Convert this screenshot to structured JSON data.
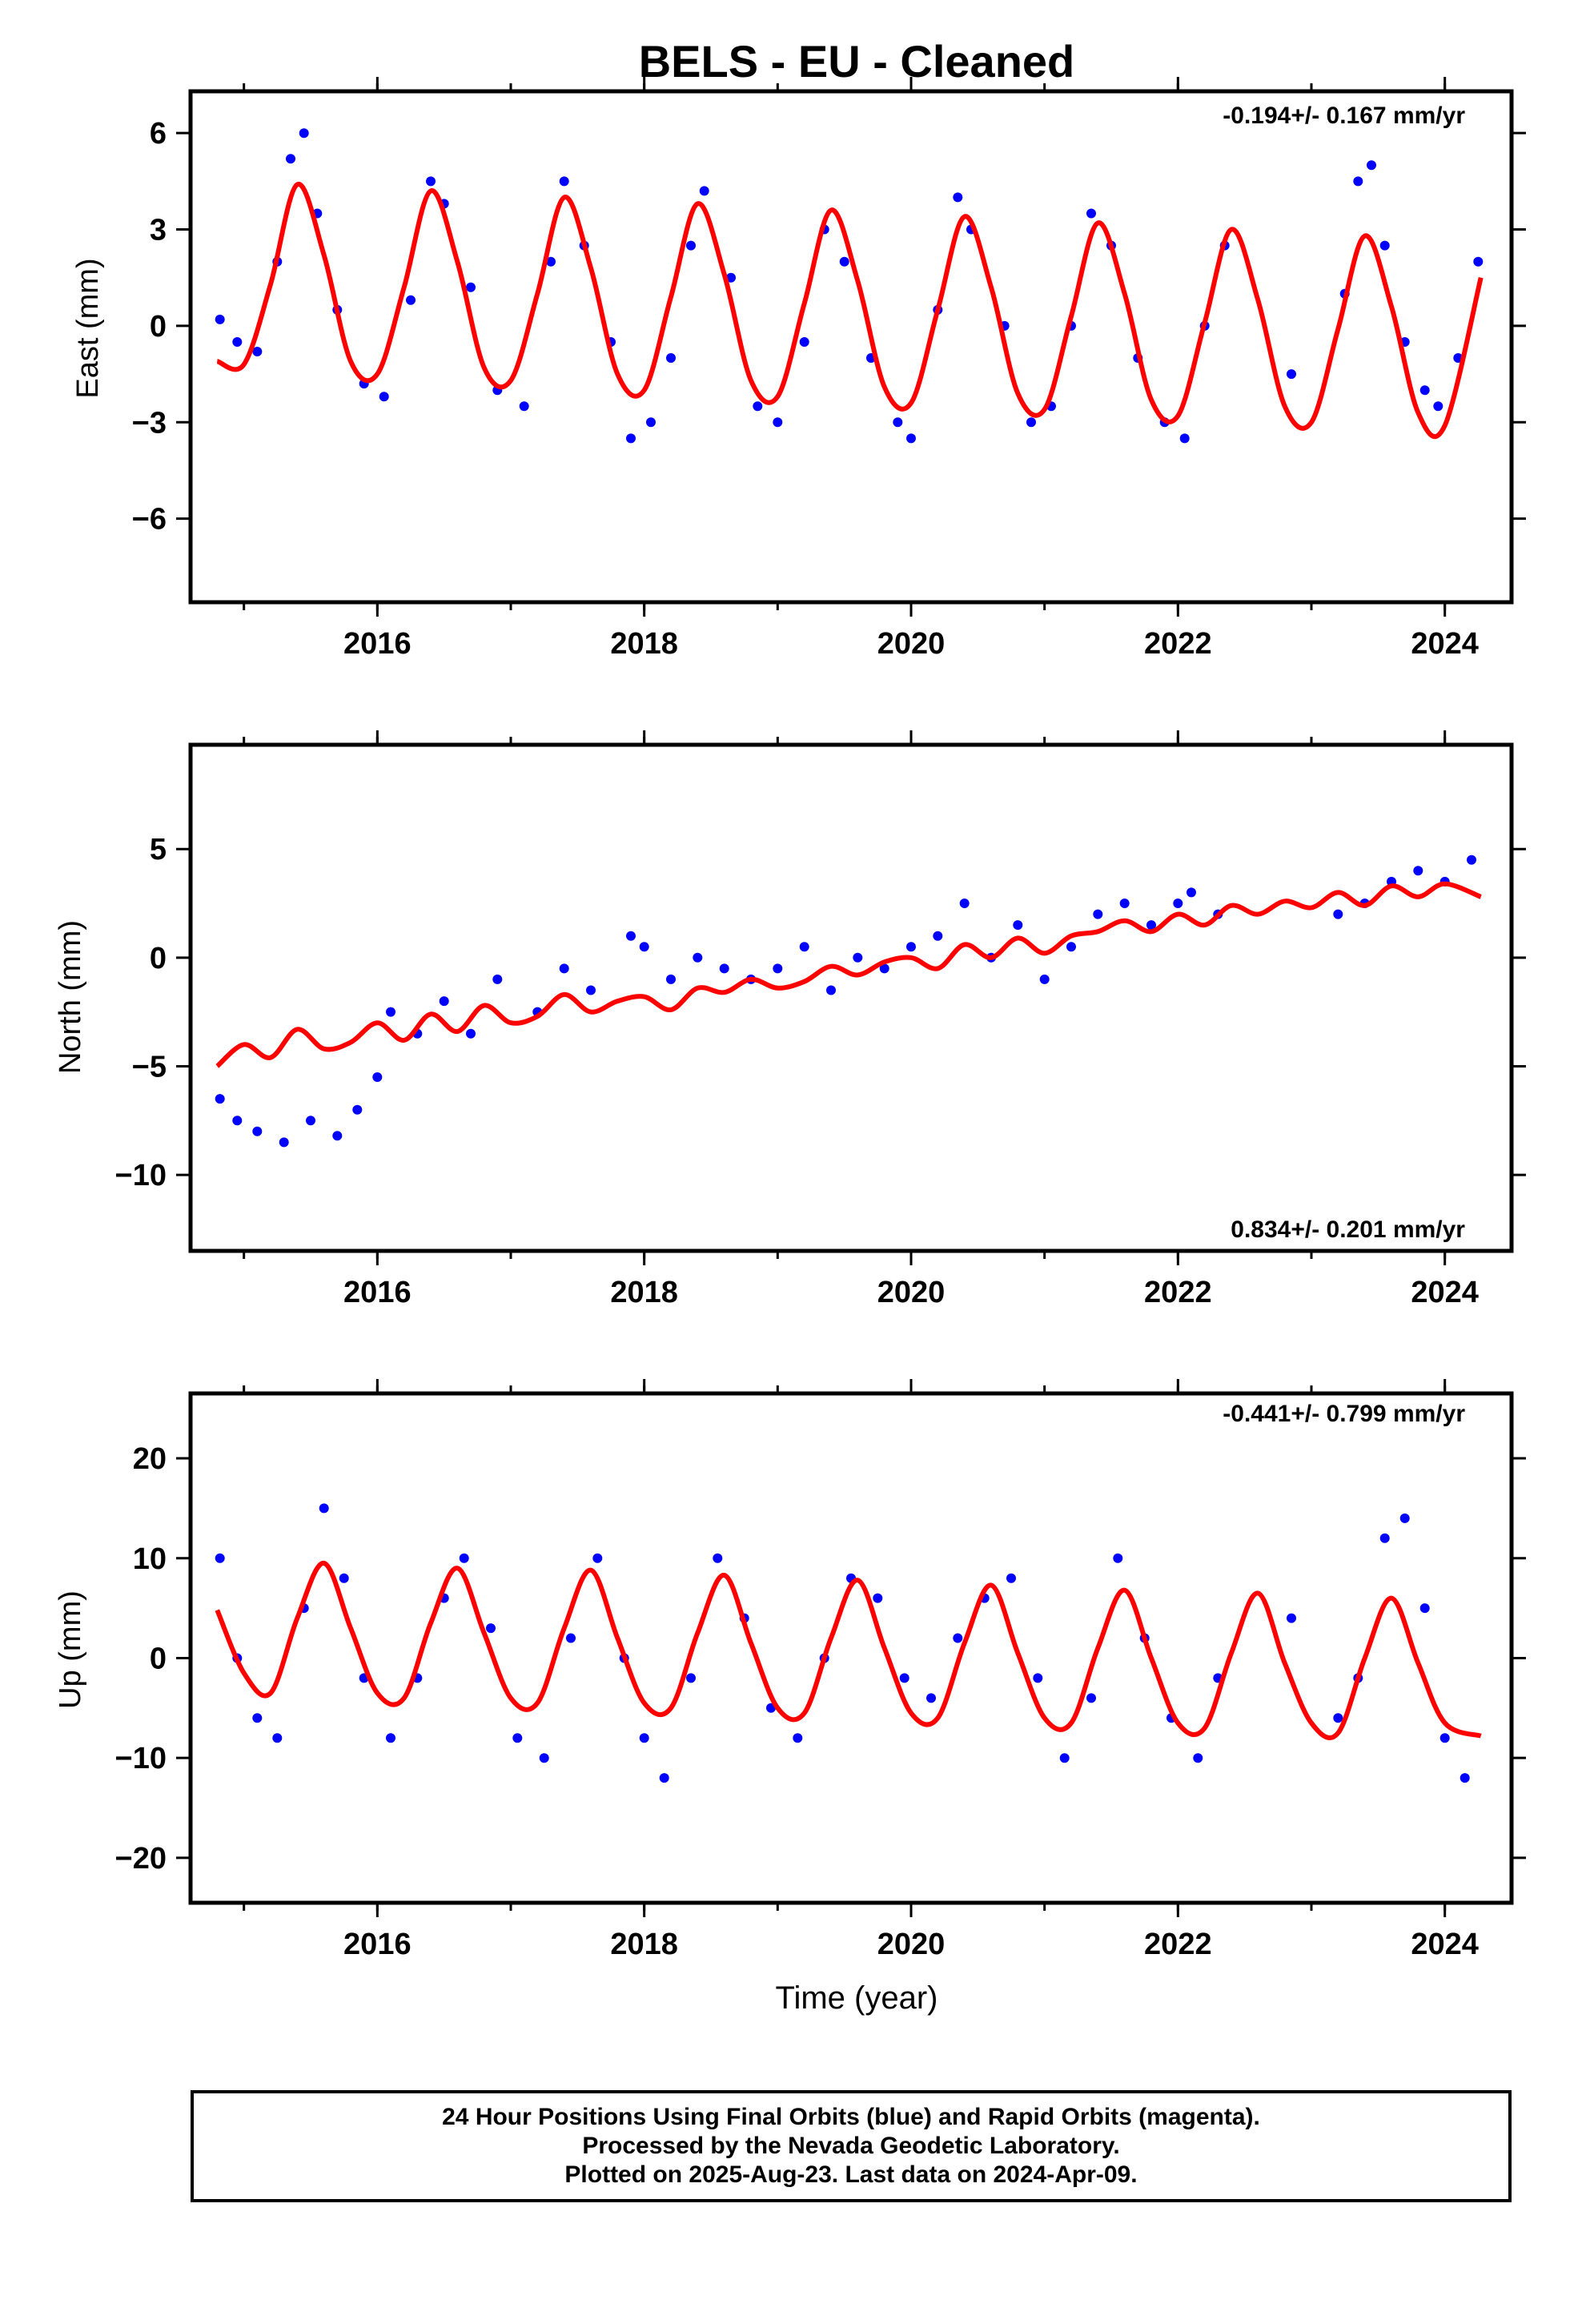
{
  "title": "BELS  - EU - Cleaned",
  "xaxis_label": "Time (year)",
  "footer": {
    "line1": "24 Hour Positions Using Final Orbits (blue) and Rapid Orbits (magenta).",
    "line2": "Processed by the Nevada Geodetic Laboratory.",
    "line3": "Plotted on 2025-Aug-23. Last data on 2024-Apr-09."
  },
  "colors": {
    "points": "#0000ff",
    "model": "#ff0000",
    "frame": "#000000"
  },
  "chart_data": [
    {
      "type": "scatter",
      "title": "BELS  - EU - Cleaned",
      "ylabel": "East (mm)",
      "xlabel": "",
      "rate_text": "-0.194+/- 0.167 mm/yr",
      "rate_position": "top-right",
      "xlim": [
        2014.6,
        2024.5
      ],
      "ylim": [
        -8.6,
        7.3
      ],
      "xticks": [
        2016,
        2018,
        2020,
        2022,
        2024
      ],
      "yticks": [
        -6,
        -3,
        0,
        3,
        6
      ],
      "ytick_labels": [
        "−6",
        "−3",
        "0",
        "3",
        "6"
      ],
      "series": [
        {
          "name": "model",
          "kind": "line",
          "x": [
            2014.8,
            2015.0,
            2015.2,
            2015.4,
            2015.6,
            2015.8,
            2016.0,
            2016.2,
            2016.4,
            2016.6,
            2016.8,
            2017.0,
            2017.2,
            2017.4,
            2017.6,
            2017.8,
            2018.0,
            2018.2,
            2018.4,
            2018.6,
            2018.8,
            2019.0,
            2019.2,
            2019.4,
            2019.6,
            2019.8,
            2020.0,
            2020.2,
            2020.4,
            2020.6,
            2020.8,
            2021.0,
            2021.2,
            2021.4,
            2021.6,
            2021.8,
            2022.0,
            2022.2,
            2022.4,
            2022.6,
            2022.8,
            2023.0,
            2023.2,
            2023.4,
            2023.6,
            2023.8,
            2024.0,
            2024.27
          ],
          "y": [
            -1.1,
            -1.2,
            1.3,
            4.4,
            2.2,
            -1.1,
            -1.5,
            1.2,
            4.2,
            2.0,
            -1.3,
            -1.7,
            1.0,
            4.0,
            1.8,
            -1.5,
            -2.0,
            0.9,
            3.8,
            1.6,
            -1.7,
            -2.2,
            0.7,
            3.6,
            1.4,
            -1.9,
            -2.4,
            0.5,
            3.4,
            1.2,
            -2.1,
            -2.6,
            0.3,
            3.2,
            1.0,
            -2.3,
            -2.8,
            0.1,
            3.0,
            0.8,
            -2.5,
            -3.0,
            -0.1,
            2.8,
            0.6,
            -2.7,
            -3.1,
            1.5
          ]
        },
        {
          "name": "data",
          "kind": "points",
          "x": [
            2014.82,
            2014.95,
            2015.1,
            2015.25,
            2015.35,
            2015.45,
            2015.55,
            2015.7,
            2015.9,
            2016.05,
            2016.25,
            2016.4,
            2016.5,
            2016.7,
            2016.9,
            2017.1,
            2017.3,
            2017.4,
            2017.55,
            2017.75,
            2017.9,
            2018.05,
            2018.2,
            2018.35,
            2018.45,
            2018.65,
            2018.85,
            2019.0,
            2019.2,
            2019.35,
            2019.5,
            2019.7,
            2019.9,
            2020.0,
            2020.2,
            2020.35,
            2020.45,
            2020.7,
            2020.9,
            2021.05,
            2021.2,
            2021.35,
            2021.5,
            2021.7,
            2021.9,
            2022.05,
            2022.2,
            2022.35,
            2022.85,
            2023.25,
            2023.35,
            2023.45,
            2023.55,
            2023.7,
            2023.85,
            2023.95,
            2024.1,
            2024.25
          ],
          "y": [
            0.2,
            -0.5,
            -0.8,
            2.0,
            5.2,
            6.0,
            3.5,
            0.5,
            -1.8,
            -2.2,
            0.8,
            4.5,
            3.8,
            1.2,
            -2.0,
            -2.5,
            2.0,
            4.5,
            2.5,
            -0.5,
            -3.5,
            -3.0,
            -1.0,
            2.5,
            4.2,
            1.5,
            -2.5,
            -3.0,
            -0.5,
            3.0,
            2.0,
            -1.0,
            -3.0,
            -3.5,
            0.5,
            4.0,
            3.0,
            0.0,
            -3.0,
            -2.5,
            0.0,
            3.5,
            2.5,
            -1.0,
            -3.0,
            -3.5,
            0.0,
            2.5,
            -1.5,
            1.0,
            4.5,
            5.0,
            2.5,
            -0.5,
            -2.0,
            -2.5,
            -1.0,
            2.0
          ]
        }
      ]
    },
    {
      "type": "scatter",
      "ylabel": "North (mm)",
      "xlabel": "",
      "rate_text": "0.834+/- 0.201 mm/yr",
      "rate_position": "bottom-right",
      "xlim": [
        2014.6,
        2024.5
      ],
      "ylim": [
        -13.5,
        9.8
      ],
      "xticks": [
        2016,
        2018,
        2020,
        2022,
        2024
      ],
      "yticks": [
        -10,
        -5,
        0,
        5
      ],
      "ytick_labels": [
        "−10",
        "−5",
        "0",
        "5"
      ],
      "series": [
        {
          "name": "model",
          "kind": "line",
          "x": [
            2014.8,
            2015.0,
            2015.2,
            2015.4,
            2015.6,
            2015.8,
            2016.0,
            2016.2,
            2016.4,
            2016.6,
            2016.8,
            2017.0,
            2017.2,
            2017.4,
            2017.6,
            2017.8,
            2018.0,
            2018.2,
            2018.4,
            2018.6,
            2018.8,
            2019.0,
            2019.2,
            2019.4,
            2019.6,
            2019.8,
            2020.0,
            2020.2,
            2020.4,
            2020.6,
            2020.8,
            2021.0,
            2021.2,
            2021.4,
            2021.6,
            2021.8,
            2022.0,
            2022.2,
            2022.4,
            2022.6,
            2022.8,
            2023.0,
            2023.2,
            2023.4,
            2023.6,
            2023.8,
            2024.0,
            2024.27
          ],
          "y": [
            -5.0,
            -4.0,
            -4.6,
            -3.3,
            -4.2,
            -3.9,
            -3.0,
            -3.8,
            -2.6,
            -3.4,
            -2.2,
            -3.0,
            -2.7,
            -1.7,
            -2.5,
            -2.0,
            -1.8,
            -2.4,
            -1.4,
            -1.6,
            -1.0,
            -1.4,
            -1.1,
            -0.4,
            -0.8,
            -0.2,
            0.0,
            -0.5,
            0.6,
            0.0,
            0.9,
            0.2,
            1.0,
            1.2,
            1.7,
            1.2,
            2.0,
            1.5,
            2.4,
            2.0,
            2.6,
            2.3,
            3.0,
            2.4,
            3.3,
            2.8,
            3.4,
            2.8
          ]
        },
        {
          "name": "data",
          "kind": "points",
          "x": [
            2014.82,
            2014.95,
            2015.1,
            2015.3,
            2015.5,
            2015.7,
            2015.85,
            2016.0,
            2016.1,
            2016.3,
            2016.5,
            2016.7,
            2016.9,
            2017.2,
            2017.4,
            2017.6,
            2017.9,
            2018.0,
            2018.2,
            2018.4,
            2018.6,
            2018.8,
            2019.0,
            2019.2,
            2019.4,
            2019.6,
            2019.8,
            2020.0,
            2020.2,
            2020.4,
            2020.6,
            2020.8,
            2021.0,
            2021.2,
            2021.4,
            2021.6,
            2021.8,
            2022.0,
            2022.1,
            2022.3,
            2023.2,
            2023.4,
            2023.6,
            2023.8,
            2024.0,
            2024.2
          ],
          "y": [
            -6.5,
            -7.5,
            -8.0,
            -8.5,
            -7.5,
            -8.2,
            -7.0,
            -5.5,
            -2.5,
            -3.5,
            -2.0,
            -3.5,
            -1.0,
            -2.5,
            -0.5,
            -1.5,
            1.0,
            0.5,
            -1.0,
            0.0,
            -0.5,
            -1.0,
            -0.5,
            0.5,
            -1.5,
            0.0,
            -0.5,
            0.5,
            1.0,
            2.5,
            0.0,
            1.5,
            -1.0,
            0.5,
            2.0,
            2.5,
            1.5,
            2.5,
            3.0,
            2.0,
            2.0,
            2.5,
            3.5,
            4.0,
            3.5,
            4.5
          ]
        }
      ]
    },
    {
      "type": "scatter",
      "ylabel": "Up (mm)",
      "xlabel": "Time (year)",
      "rate_text": "-0.441+/- 0.799 mm/yr",
      "rate_position": "top-right",
      "xlim": [
        2014.6,
        2024.5
      ],
      "ylim": [
        -24.5,
        26.5
      ],
      "xticks": [
        2016,
        2018,
        2020,
        2022,
        2024
      ],
      "yticks": [
        -20,
        -10,
        0,
        10,
        20
      ],
      "ytick_labels": [
        "−20",
        "−10",
        "0",
        "10",
        "20"
      ],
      "series": [
        {
          "name": "model",
          "kind": "line",
          "x": [
            2014.8,
            2015.0,
            2015.2,
            2015.4,
            2015.6,
            2015.8,
            2016.0,
            2016.2,
            2016.4,
            2016.6,
            2016.8,
            2017.0,
            2017.2,
            2017.4,
            2017.6,
            2017.8,
            2018.0,
            2018.2,
            2018.4,
            2018.6,
            2018.8,
            2019.0,
            2019.2,
            2019.4,
            2019.6,
            2019.8,
            2020.0,
            2020.2,
            2020.4,
            2020.6,
            2020.8,
            2021.0,
            2021.2,
            2021.4,
            2021.6,
            2021.8,
            2022.0,
            2022.2,
            2022.4,
            2022.6,
            2022.8,
            2023.0,
            2023.2,
            2023.4,
            2023.6,
            2023.8,
            2024.0,
            2024.27
          ],
          "y": [
            4.8,
            -1.5,
            -3.5,
            4.0,
            9.5,
            3.0,
            -3.5,
            -4.0,
            3.5,
            9.0,
            2.5,
            -4.0,
            -4.5,
            3.0,
            8.8,
            2.0,
            -4.5,
            -5.0,
            2.5,
            8.3,
            1.5,
            -5.0,
            -5.5,
            2.0,
            7.8,
            1.0,
            -5.5,
            -6.0,
            1.5,
            7.3,
            0.5,
            -6.0,
            -6.5,
            1.0,
            6.8,
            0.0,
            -6.5,
            -7.0,
            0.5,
            6.5,
            -0.5,
            -6.5,
            -7.5,
            0.0,
            6.0,
            -0.5,
            -6.5,
            -7.8
          ]
        },
        {
          "name": "data",
          "kind": "points",
          "x": [
            2014.82,
            2014.95,
            2015.1,
            2015.25,
            2015.45,
            2015.6,
            2015.75,
            2015.9,
            2016.1,
            2016.3,
            2016.5,
            2016.65,
            2016.85,
            2017.05,
            2017.25,
            2017.45,
            2017.65,
            2017.85,
            2018.0,
            2018.15,
            2018.35,
            2018.55,
            2018.75,
            2018.95,
            2019.15,
            2019.35,
            2019.55,
            2019.75,
            2019.95,
            2020.15,
            2020.35,
            2020.55,
            2020.75,
            2020.95,
            2021.15,
            2021.35,
            2021.55,
            2021.75,
            2021.95,
            2022.15,
            2022.3,
            2022.85,
            2023.2,
            2023.35,
            2023.55,
            2023.7,
            2023.85,
            2024.0,
            2024.15
          ],
          "y": [
            10.0,
            0.0,
            -6.0,
            -8.0,
            5.0,
            15.0,
            8.0,
            -2.0,
            -8.0,
            -2.0,
            6.0,
            10.0,
            3.0,
            -8.0,
            -10.0,
            2.0,
            10.0,
            0.0,
            -8.0,
            -12.0,
            -2.0,
            10.0,
            4.0,
            -5.0,
            -8.0,
            0.0,
            8.0,
            6.0,
            -2.0,
            -4.0,
            2.0,
            6.0,
            8.0,
            -2.0,
            -10.0,
            -4.0,
            10.0,
            2.0,
            -6.0,
            -10.0,
            -2.0,
            4.0,
            -6.0,
            -2.0,
            12.0,
            14.0,
            5.0,
            -8.0,
            -12.0
          ]
        }
      ]
    }
  ]
}
